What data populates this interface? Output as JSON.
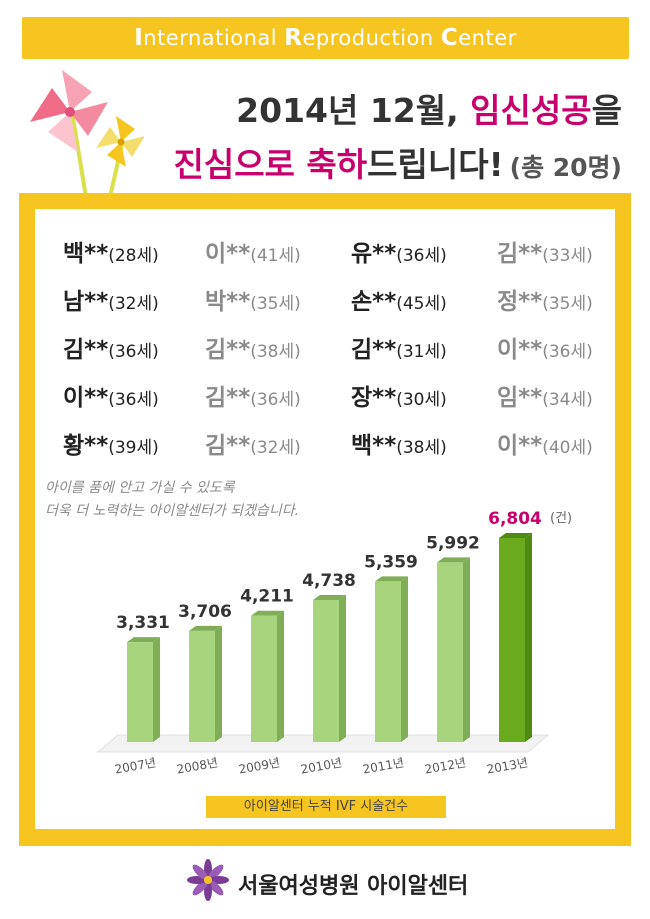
{
  "header": {
    "center_name_parts": [
      {
        "cap": "I",
        "rest": "nternational "
      },
      {
        "cap": "R",
        "rest": "eproduction "
      },
      {
        "cap": "C",
        "rest": "enter"
      }
    ],
    "line1_prefix": "2014년 12월, ",
    "line1_highlight": "임신성공",
    "line1_suffix": "을",
    "line2_highlight1": "진심으로 ",
    "line2_highlight2": "축하",
    "line2_suffix": "드립니다!",
    "total": "(총 20명)"
  },
  "names": [
    {
      "name": "백**",
      "age": "(28세)",
      "tone": "dark"
    },
    {
      "name": "이**",
      "age": "(41세)",
      "tone": "gray"
    },
    {
      "name": "유**",
      "age": "(36세)",
      "tone": "dark"
    },
    {
      "name": "김**",
      "age": "(33세)",
      "tone": "gray"
    },
    {
      "name": "남**",
      "age": "(32세)",
      "tone": "dark"
    },
    {
      "name": "박**",
      "age": "(35세)",
      "tone": "gray"
    },
    {
      "name": "손**",
      "age": "(45세)",
      "tone": "dark"
    },
    {
      "name": "정**",
      "age": "(35세)",
      "tone": "gray"
    },
    {
      "name": "김**",
      "age": "(36세)",
      "tone": "dark"
    },
    {
      "name": "김**",
      "age": "(38세)",
      "tone": "gray"
    },
    {
      "name": "김**",
      "age": "(31세)",
      "tone": "dark"
    },
    {
      "name": "이**",
      "age": "(36세)",
      "tone": "gray"
    },
    {
      "name": "이**",
      "age": "(36세)",
      "tone": "dark"
    },
    {
      "name": "김**",
      "age": "(36세)",
      "tone": "gray"
    },
    {
      "name": "장**",
      "age": "(30세)",
      "tone": "dark"
    },
    {
      "name": "임**",
      "age": "(34세)",
      "tone": "gray"
    },
    {
      "name": "황**",
      "age": "(39세)",
      "tone": "dark"
    },
    {
      "name": "김**",
      "age": "(32세)",
      "tone": "gray"
    },
    {
      "name": "백**",
      "age": "(38세)",
      "tone": "dark"
    },
    {
      "name": "이**",
      "age": "(40세)",
      "tone": "gray"
    }
  ],
  "message": {
    "line1": "아이를 품에 안고 가실 수 있도록",
    "line2": "더욱 더 노력하는 아이알센터가 되겠습니다."
  },
  "chart_data": {
    "type": "bar",
    "categories": [
      "2007년",
      "2008년",
      "2009년",
      "2010년",
      "2011년",
      "2012년",
      "2013년"
    ],
    "values": [
      3331,
      3706,
      4211,
      4738,
      5359,
      5992,
      6804
    ],
    "value_labels": [
      "3,331",
      "3,706",
      "4,211",
      "4,738",
      "5,359",
      "5,992",
      "6,804"
    ],
    "unit": "(건)",
    "title": "아이알센터 누적 IVF 시술건수",
    "highlight_index": 6,
    "colors": {
      "bar": "#a8d47e",
      "bar_side": "#7fae57",
      "highlight": "#6aaa1e",
      "highlight_side": "#4f8a12",
      "highlight_label": "#c8006e"
    },
    "grid": false,
    "legend": "none"
  },
  "footer": {
    "hospital": "서울여성병원 아이알센터"
  },
  "colors": {
    "accent": "#f7c520",
    "highlight": "#c8006e"
  }
}
